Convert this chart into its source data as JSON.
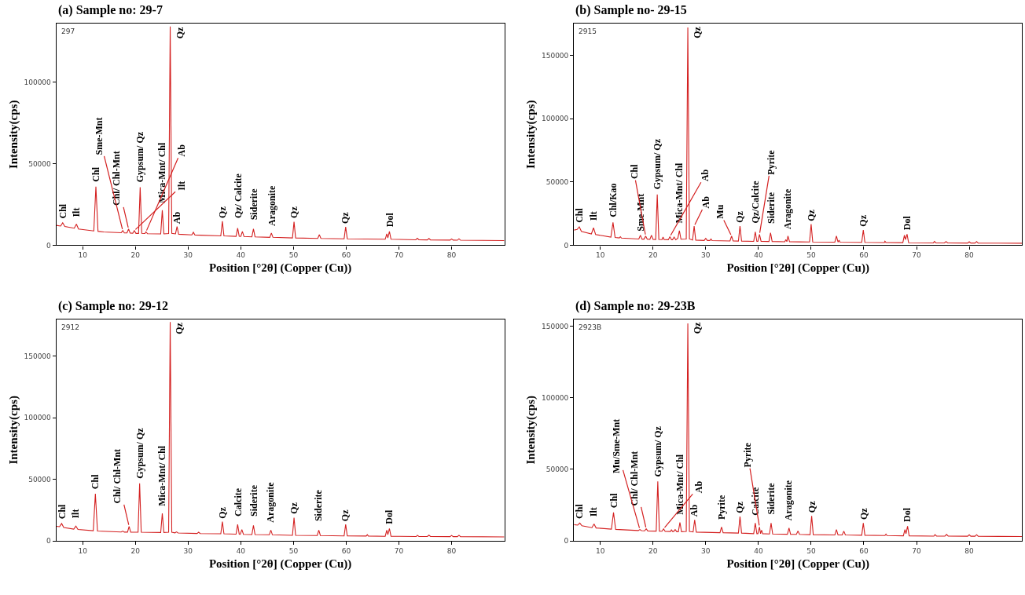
{
  "chart_data": [
    {
      "type": "line",
      "title": "(a) Sample no: 29-7",
      "xlabel": "Position [°2θ] (Copper (Cu))",
      "ylabel": "Intensity(cps)",
      "xlim": [
        5,
        90
      ],
      "xticks": [
        10,
        20,
        30,
        40,
        50,
        60,
        70,
        80
      ],
      "ylim": [
        0,
        136000
      ],
      "yticks": [
        0,
        50000,
        100000
      ],
      "series": [
        {
          "color": "#d42020",
          "x": [
            5,
            5.8,
            6.2,
            6.6,
            8.4,
            8.8,
            9.2,
            12.1,
            12.5,
            12.9,
            14,
            17.3,
            17.6,
            17.9,
            18.4,
            18.7,
            19.0,
            19.5,
            19.8,
            20.1,
            20.6,
            20.9,
            21.2,
            21.8,
            22.0,
            22.3,
            24.8,
            25.1,
            25.4,
            26.3,
            26.6,
            26.9,
            27.6,
            27.9,
            28.2,
            30.7,
            31.0,
            31.3,
            36.2,
            36.5,
            36.8,
            39.1,
            39.4,
            39.7,
            40.0,
            40.3,
            40.6,
            42.1,
            42.4,
            42.7,
            45.5,
            45.8,
            46.1,
            49.8,
            50.1,
            50.4,
            54.6,
            54.9,
            55.2,
            59.6,
            59.9,
            60.2,
            67.4,
            67.7,
            67.9,
            68.2,
            68.5,
            73.2,
            73.5,
            73.8,
            75.4,
            75.7,
            76.0,
            79.7,
            80.0,
            80.3,
            81.1,
            81.4,
            81.7,
            90
          ],
          "values": [
            12200,
            11800,
            13800,
            11500,
            10500,
            13000,
            10000,
            8800,
            36000,
            8600,
            8200,
            7700,
            9000,
            7600,
            7600,
            10000,
            7500,
            7400,
            9000,
            7300,
            7300,
            35600,
            7300,
            7200,
            8200,
            7100,
            7000,
            21500,
            7000,
            7200,
            134200,
            7300,
            7000,
            11500,
            6800,
            6400,
            8000,
            6300,
            5800,
            14800,
            5800,
            5500,
            10500,
            5500,
            5400,
            8500,
            5400,
            5200,
            10000,
            5200,
            4900,
            7500,
            4900,
            4500,
            14400,
            4500,
            4200,
            6500,
            4200,
            4000,
            11300,
            4000,
            3700,
            7000,
            4500,
            8500,
            3700,
            3400,
            4300,
            3400,
            3300,
            4200,
            3300,
            3200,
            3900,
            3200,
            3100,
            4000,
            3100,
            2900
          ]
        }
      ],
      "annotations": [
        "297",
        {
          "text": "Chl",
          "x": 6.2,
          "y": 13800
        },
        {
          "text": "Ilt",
          "x": 8.8,
          "y": 13000
        },
        {
          "text": "Chl",
          "x": 12.5,
          "y": 36000
        },
        {
          "text": "Sme-Mnt",
          "x": 17.6,
          "y": 9000
        },
        {
          "text": "Chl/ Chl-Mnt",
          "x": 18.7,
          "y": 10000
        },
        {
          "text": "Ilt",
          "x": 19.8,
          "y": 9000
        },
        {
          "text": "Gypsum/ Qz",
          "x": 20.9,
          "y": 35600
        },
        {
          "text": "Ab",
          "x": 22.0,
          "y": 8200
        },
        {
          "text": "Mica-Mnt/ Chl",
          "x": 25.1,
          "y": 21500
        },
        {
          "text": "Qz",
          "x": 26.6,
          "y": 134200
        },
        {
          "text": "Ab",
          "x": 27.9,
          "y": 11500
        },
        {
          "text": "Qz",
          "x": 36.5,
          "y": 14800
        },
        {
          "text": "Qz/ Calcite",
          "x": 39.4,
          "y": 10500
        },
        {
          "text": "Siderite",
          "x": 42.4,
          "y": 10000
        },
        {
          "text": "Aragonite",
          "x": 45.8,
          "y": 7500
        },
        {
          "text": "Qz",
          "x": 50.1,
          "y": 14400
        },
        {
          "text": "Qz",
          "x": 59.9,
          "y": 11300
        },
        {
          "text": "Dol",
          "x": 68.2,
          "y": 8500
        }
      ]
    },
    {
      "type": "line",
      "title": "(b) Sample no- 29-15",
      "xlabel": "Position [°2θ] (Copper (Cu))",
      "ylabel": "Intensity(cps)",
      "xlim": [
        5,
        90
      ],
      "xticks": [
        10,
        20,
        30,
        40,
        50,
        60,
        70,
        80
      ],
      "ylim": [
        0,
        175000
      ],
      "yticks": [
        0,
        50000,
        100000,
        150000
      ],
      "series": [
        {
          "color": "#d42020",
          "x": [
            5,
            5.6,
            6.0,
            6.4,
            8.3,
            8.7,
            9.1,
            12.0,
            12.4,
            12.8,
            13.6,
            13.8,
            14.0,
            17.3,
            17.6,
            17.9,
            18.3,
            18.6,
            18.9,
            19.4,
            19.7,
            20.0,
            20.5,
            20.8,
            21.1,
            21.7,
            21.9,
            22.1,
            22.9,
            23.2,
            23.5,
            23.7,
            24.0,
            24.3,
            24.7,
            25.0,
            25.3,
            26.3,
            26.6,
            26.9,
            27.5,
            27.8,
            28.1,
            29.7,
            30.0,
            30.3,
            30.8,
            31.0,
            31.2,
            34.6,
            34.9,
            35.2,
            36.2,
            36.5,
            36.8,
            39.1,
            39.4,
            39.7,
            39.9,
            40.2,
            40.5,
            42.0,
            42.3,
            42.6,
            45.0,
            45.2,
            45.4,
            45.6,
            45.9,
            49.7,
            50.0,
            50.3,
            54.5,
            54.8,
            55.1,
            55.3,
            55.5,
            59.6,
            59.9,
            60.2,
            63.9,
            64.0,
            64.2,
            67.4,
            67.7,
            67.9,
            68.2,
            68.5,
            73.2,
            73.4,
            73.7,
            75.3,
            75.6,
            75.9,
            79.7,
            80.0,
            80.3,
            81.1,
            81.4,
            81.7,
            90
          ],
          "values": [
            12000,
            12500,
            14600,
            11000,
            9000,
            13800,
            8500,
            6500,
            18000,
            6200,
            5800,
            6800,
            5700,
            5000,
            8000,
            4900,
            4900,
            7300,
            4800,
            4700,
            8000,
            4700,
            4600,
            40100,
            4600,
            4500,
            6500,
            4500,
            4400,
            6800,
            4400,
            4400,
            6500,
            4300,
            5500,
            11500,
            4800,
            5000,
            171900,
            5000,
            4200,
            15100,
            4100,
            3800,
            5500,
            3800,
            3800,
            5000,
            3700,
            3400,
            7300,
            3400,
            3300,
            15100,
            3300,
            3100,
            10700,
            3100,
            3100,
            8600,
            3100,
            3000,
            9900,
            3000,
            2800,
            4500,
            2900,
            7300,
            2800,
            2600,
            16700,
            2600,
            2500,
            7300,
            2500,
            4000,
            2500,
            2300,
            12000,
            2300,
            2200,
            3200,
            2200,
            2100,
            8000,
            4500,
            8800,
            2000,
            1900,
            3000,
            1900,
            1900,
            3000,
            1900,
            1800,
            2800,
            1800,
            1800,
            3000,
            1800,
            1600
          ]
        }
      ],
      "annotations": [
        "2915",
        {
          "text": "Chl",
          "x": 6.0,
          "y": 14600
        },
        {
          "text": "Ilt",
          "x": 8.7,
          "y": 13800
        },
        {
          "text": "Chl/Kao",
          "x": 12.4,
          "y": 18000
        },
        {
          "text": "Sme-Mnt",
          "x": 17.6,
          "y": 8000
        },
        {
          "text": "Chl",
          "x": 18.6,
          "y": 7300
        },
        {
          "text": "Gypsum/ Qz",
          "x": 20.8,
          "y": 40100
        },
        {
          "text": "Ab",
          "x": 23.2,
          "y": 6800
        },
        {
          "text": "Mica-Mnt/ Chl",
          "x": 25.0,
          "y": 11500
        },
        {
          "text": "Qz",
          "x": 26.6,
          "y": 171900
        },
        {
          "text": "Ab",
          "x": 27.8,
          "y": 15100
        },
        {
          "text": "Mu",
          "x": 34.9,
          "y": 7300
        },
        {
          "text": "Qz",
          "x": 36.5,
          "y": 15100
        },
        {
          "text": "Qz/Calcite",
          "x": 39.4,
          "y": 10700
        },
        {
          "text": "Pyrite",
          "x": 40.2,
          "y": 8600
        },
        {
          "text": "Siderite",
          "x": 42.3,
          "y": 9900
        },
        {
          "text": "Aragonite",
          "x": 45.6,
          "y": 7300
        },
        {
          "text": "Qz",
          "x": 50.0,
          "y": 16700
        },
        {
          "text": "Qz",
          "x": 59.9,
          "y": 12000
        },
        {
          "text": "Dol",
          "x": 68.2,
          "y": 8800
        }
      ]
    },
    {
      "type": "line",
      "title": "(c) Sample no: 29-12",
      "xlabel": "Position [°2θ] (Copper (Cu))",
      "ylabel": "Intensity(cps)",
      "xlim": [
        5,
        90
      ],
      "xticks": [
        10,
        20,
        30,
        40,
        50,
        60,
        70,
        80
      ],
      "ylim": [
        0,
        180000
      ],
      "yticks": [
        0,
        50000,
        100000,
        150000
      ],
      "series": [
        {
          "color": "#d42020",
          "x": [
            5,
            5.6,
            6.0,
            6.4,
            8.3,
            8.7,
            9.1,
            12.0,
            12.4,
            12.8,
            17.3,
            17.6,
            17.9,
            18.5,
            18.8,
            19.1,
            20.5,
            20.8,
            21.1,
            24.8,
            25.1,
            25.4,
            26.3,
            26.6,
            26.9,
            27.5,
            27.8,
            28.1,
            31.7,
            32.0,
            32.3,
            36.2,
            36.5,
            36.8,
            39.1,
            39.4,
            39.7,
            39.9,
            40.2,
            40.5,
            42.1,
            42.4,
            42.7,
            45.4,
            45.7,
            46.0,
            49.8,
            50.1,
            50.4,
            54.5,
            54.8,
            55.1,
            59.6,
            59.9,
            60.2,
            63.8,
            64.0,
            64.2,
            67.4,
            67.7,
            67.9,
            68.2,
            68.5,
            73.3,
            73.5,
            73.8,
            75.4,
            75.7,
            76.0,
            79.7,
            80.0,
            80.3,
            81.1,
            81.4,
            81.7,
            90
          ],
          "values": [
            11800,
            11500,
            14100,
            10800,
            9500,
            12000,
            9200,
            8200,
            38300,
            8000,
            7200,
            7900,
            7100,
            7100,
            11700,
            7000,
            7000,
            46700,
            7000,
            6800,
            22300,
            6800,
            7000,
            177700,
            7000,
            6500,
            7300,
            6400,
            6000,
            7000,
            5900,
            5700,
            15500,
            5700,
            5400,
            13300,
            5400,
            5300,
            9200,
            5300,
            5100,
            12500,
            5100,
            4900,
            8700,
            4900,
            4500,
            18800,
            4500,
            4300,
            8700,
            4300,
            4000,
            13300,
            4000,
            3900,
            5000,
            3900,
            3700,
            8700,
            5000,
            10000,
            3700,
            3500,
            4500,
            3500,
            3500,
            4600,
            3500,
            3400,
            4400,
            3400,
            3400,
            4500,
            3400,
            3200
          ]
        }
      ],
      "annotations": [
        "2912",
        {
          "text": "Chl",
          "x": 6.0,
          "y": 14100
        },
        {
          "text": "Ilt",
          "x": 8.7,
          "y": 12000
        },
        {
          "text": "Chl",
          "x": 12.4,
          "y": 38300
        },
        {
          "text": "Chl/ Chl-Mnt",
          "x": 18.8,
          "y": 11700
        },
        {
          "text": "Gypsum/ Qz",
          "x": 20.8,
          "y": 46700
        },
        {
          "text": "Mica-Mnt/ Chl",
          "x": 25.1,
          "y": 22300
        },
        {
          "text": "Qz",
          "x": 26.6,
          "y": 177700
        },
        {
          "text": "Qz",
          "x": 36.5,
          "y": 15500
        },
        {
          "text": "Calcite",
          "x": 39.4,
          "y": 13300
        },
        {
          "text": "Siderite",
          "x": 42.4,
          "y": 12500
        },
        {
          "text": "Aragonite",
          "x": 45.7,
          "y": 8700
        },
        {
          "text": "Qz",
          "x": 50.1,
          "y": 18800
        },
        {
          "text": "Siderite",
          "x": 54.8,
          "y": 8700
        },
        {
          "text": "Qz",
          "x": 59.9,
          "y": 13300
        },
        {
          "text": "Dol",
          "x": 68.2,
          "y": 10000
        }
      ]
    },
    {
      "type": "line",
      "title": "(d) Sample no: 29-23B",
      "xlabel": "Position [°2θ] (Copper (Cu))",
      "ylabel": "Intensity(cps)",
      "xlim": [
        5,
        90
      ],
      "xticks": [
        10,
        20,
        30,
        40,
        50,
        60,
        70,
        80
      ],
      "ylim": [
        0,
        155000
      ],
      "yticks": [
        0,
        50000,
        100000,
        150000
      ],
      "series": [
        {
          "color": "#d42020",
          "x": [
            5,
            5.7,
            6.1,
            6.5,
            8.4,
            8.8,
            9.2,
            12.1,
            12.5,
            12.9,
            17.2,
            17.5,
            17.8,
            18.4,
            18.7,
            19.0,
            20.6,
            20.9,
            21.2,
            21.7,
            22.0,
            22.3,
            23.3,
            23.5,
            23.7,
            23.9,
            24.2,
            24.5,
            24.8,
            25.1,
            25.4,
            26.3,
            26.6,
            26.9,
            27.6,
            27.9,
            28.2,
            32.7,
            33.0,
            33.3,
            36.2,
            36.5,
            36.8,
            39.1,
            39.4,
            39.7,
            39.9,
            40.2,
            40.4,
            40.6,
            40.8,
            42.1,
            42.4,
            42.7,
            45.5,
            45.8,
            46.1,
            47.2,
            47.5,
            47.8,
            49.8,
            50.1,
            50.4,
            54.5,
            54.8,
            55.1,
            55.9,
            56.2,
            56.5,
            59.6,
            59.9,
            60.2,
            64.0,
            64.2,
            64.4,
            67.5,
            67.8,
            68.0,
            68.3,
            68.6,
            73.3,
            73.5,
            73.8,
            75.4,
            75.7,
            76.0,
            79.7,
            80.0,
            80.3,
            81.1,
            81.4,
            81.7,
            90
          ],
          "values": [
            11300,
            11000,
            12400,
            10500,
            9200,
            11800,
            9000,
            8200,
            19900,
            8000,
            7200,
            7900,
            7100,
            7000,
            8400,
            6900,
            6800,
            41600,
            6800,
            6700,
            8400,
            6600,
            6500,
            7800,
            6500,
            6500,
            7900,
            6400,
            6400,
            12900,
            6400,
            6600,
            152000,
            6600,
            6200,
            14700,
            6100,
            5700,
            9700,
            5700,
            5400,
            17000,
            5400,
            5000,
            12400,
            5000,
            5000,
            9700,
            5000,
            7500,
            5000,
            4800,
            12400,
            4800,
            4600,
            9000,
            4600,
            4500,
            6800,
            4500,
            4300,
            17400,
            4300,
            4100,
            7900,
            4100,
            4100,
            6800,
            4100,
            3900,
            12400,
            3900,
            3700,
            4700,
            3700,
            3500,
            7900,
            5000,
            10200,
            3500,
            3300,
            4300,
            3300,
            3300,
            4500,
            3300,
            3200,
            4200,
            3200,
            3200,
            4300,
            3200,
            3000
          ]
        }
      ],
      "annotations": [
        "2923B",
        {
          "text": "Chl",
          "x": 6.1,
          "y": 12400
        },
        {
          "text": "Ilt",
          "x": 8.8,
          "y": 11800
        },
        {
          "text": "Chl",
          "x": 12.5,
          "y": 19900
        },
        {
          "text": "Mu/Sme-Mnt",
          "x": 17.5,
          "y": 7900
        },
        {
          "text": "Chl/ Chl-Mnt",
          "x": 18.7,
          "y": 8400
        },
        {
          "text": "Gypsum/ Qz",
          "x": 20.9,
          "y": 41600
        },
        {
          "text": "Ab",
          "x": 22.0,
          "y": 8400
        },
        {
          "text": "Mica-Mnt/ Chl",
          "x": 25.1,
          "y": 12900
        },
        {
          "text": "Qz",
          "x": 26.6,
          "y": 152000
        },
        {
          "text": "Ab",
          "x": 27.9,
          "y": 14700
        },
        {
          "text": "Pyrite",
          "x": 33.0,
          "y": 9700
        },
        {
          "text": "Qz",
          "x": 36.5,
          "y": 17000
        },
        {
          "text": "Calcite",
          "x": 39.4,
          "y": 12400
        },
        {
          "text": "Pyrite",
          "x": 40.2,
          "y": 9700
        },
        {
          "text": "Siderite",
          "x": 42.4,
          "y": 12400
        },
        {
          "text": "Aragonite",
          "x": 45.8,
          "y": 9000
        },
        {
          "text": "Qz",
          "x": 50.1,
          "y": 17400
        },
        {
          "text": "Qz",
          "x": 59.9,
          "y": 12400
        },
        {
          "text": "Dol",
          "x": 68.3,
          "y": 10200
        }
      ]
    }
  ]
}
